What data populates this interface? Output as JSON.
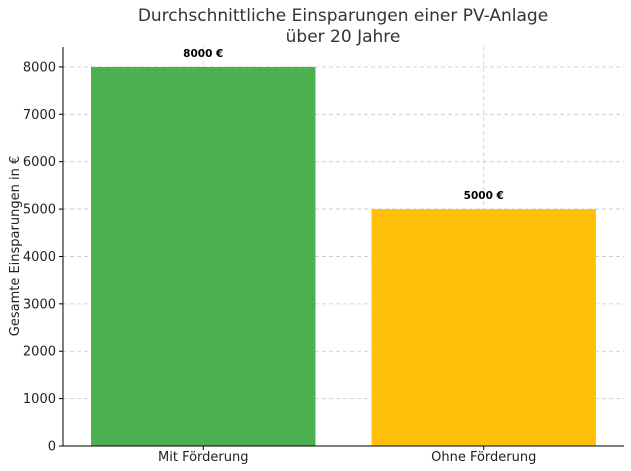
{
  "chart_data": {
    "type": "bar",
    "title_lines": [
      "Durchschnittliche Einsparungen einer PV-Anlage",
      "über 20 Jahre"
    ],
    "xlabel": "",
    "ylabel": "Gesamte Einsparungen in €",
    "categories": [
      "Mit Förderung",
      "Ohne Förderung"
    ],
    "values": [
      8000,
      5000
    ],
    "data_labels": [
      "8000 €",
      "5000 €"
    ],
    "colors": [
      "#4caf50",
      "#ffc107"
    ],
    "ylim": [
      0,
      8420
    ],
    "yticks": [
      0,
      1000,
      2000,
      3000,
      4000,
      5000,
      6000,
      7000,
      8000
    ],
    "ytick_labels": [
      "0",
      "1000",
      "2000",
      "3000",
      "4000",
      "5000",
      "6000",
      "7000",
      "8000"
    ],
    "grid": true
  }
}
